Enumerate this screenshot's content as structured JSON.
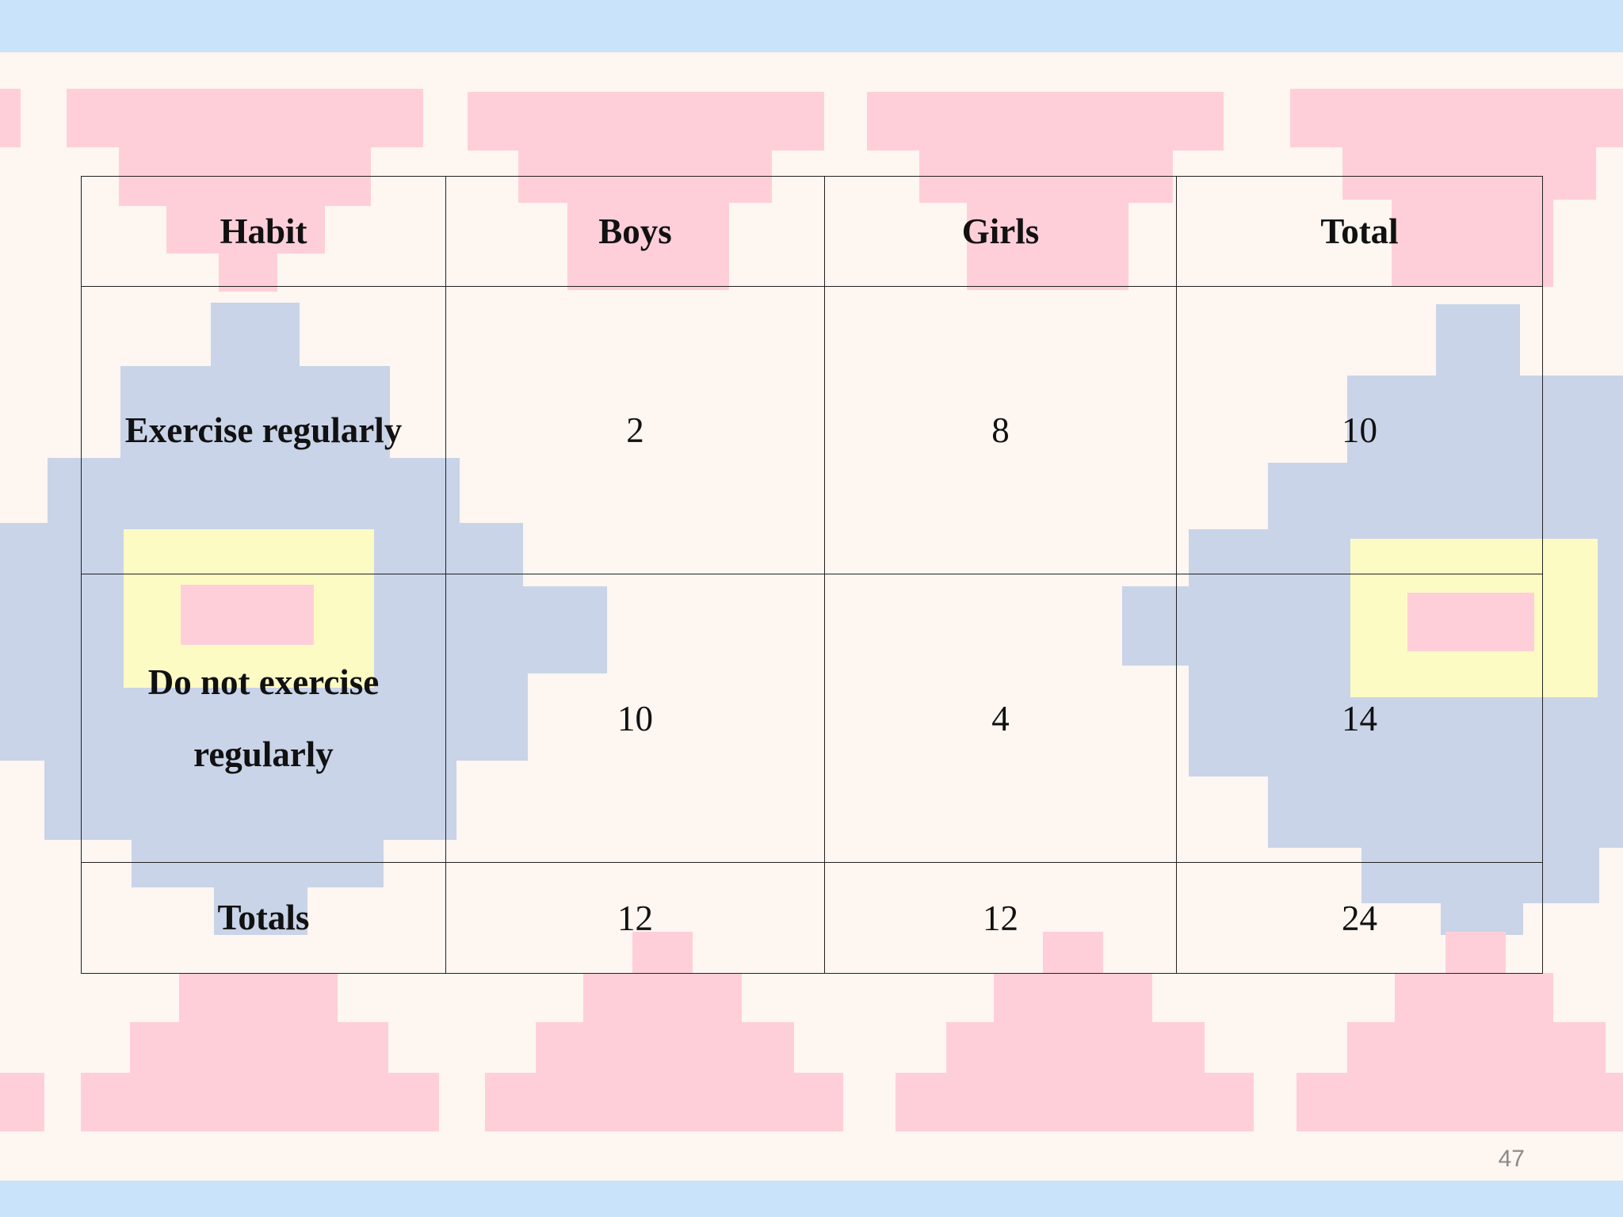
{
  "colors": {
    "band_blue": "#c9e3fb",
    "cream": "#fdf6f1",
    "pink": "#ffcfd9",
    "slate_blue": "#c9d4e8",
    "yellow": "#fdfbc4",
    "border": "#222222"
  },
  "table": {
    "headers": [
      "Habit",
      "Boys",
      "Girls",
      "Total"
    ],
    "rows": [
      {
        "label": "Exercise regularly",
        "boys": "2",
        "girls": "8",
        "total": "10"
      },
      {
        "label": "Do not exercise regularly",
        "boys": "10",
        "girls": "4",
        "total": "14"
      },
      {
        "label": "Totals",
        "boys": "12",
        "girls": "12",
        "total": "24"
      }
    ]
  },
  "page_number": "47"
}
